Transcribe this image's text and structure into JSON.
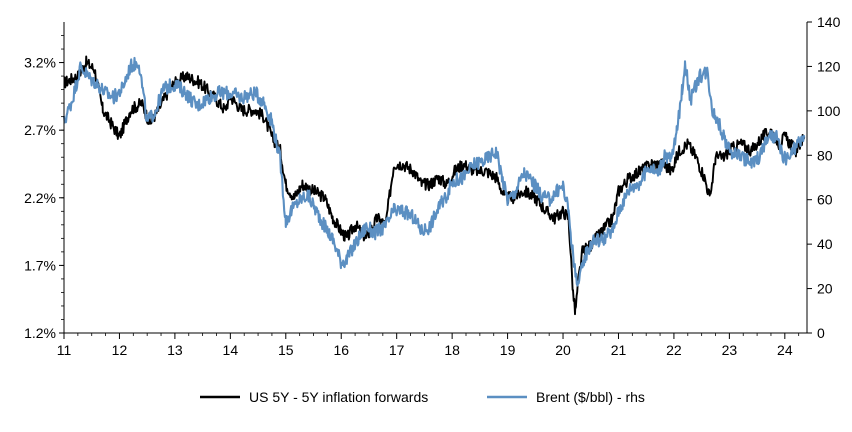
{
  "chart_data": {
    "type": "line",
    "title": "",
    "xlabel": "",
    "ylabel_left": "",
    "ylabel_right": "",
    "x_ticks": [
      "11",
      "12",
      "13",
      "14",
      "15",
      "16",
      "17",
      "18",
      "19",
      "20",
      "21",
      "22",
      "23",
      "24"
    ],
    "x_range": [
      2011.0,
      2024.4
    ],
    "y_left": {
      "ticks": [
        "1.2%",
        "1.7%",
        "2.2%",
        "2.7%",
        "3.2%"
      ],
      "range": [
        1.2,
        3.5
      ]
    },
    "y_right": {
      "ticks": [
        "0",
        "20",
        "40",
        "60",
        "80",
        "100",
        "120",
        "140"
      ],
      "range": [
        0,
        140
      ]
    },
    "series": [
      {
        "name": "US 5Y - 5Y inflation forwards",
        "axis": "left",
        "color": "#000000",
        "points": [
          [
            2011.0,
            3.05
          ],
          [
            2011.25,
            3.1
          ],
          [
            2011.4,
            3.2
          ],
          [
            2011.55,
            3.15
          ],
          [
            2011.7,
            2.85
          ],
          [
            2011.85,
            2.75
          ],
          [
            2012.0,
            2.65
          ],
          [
            2012.2,
            2.85
          ],
          [
            2012.4,
            2.9
          ],
          [
            2012.55,
            2.75
          ],
          [
            2012.7,
            2.85
          ],
          [
            2012.9,
            3.0
          ],
          [
            2013.0,
            3.05
          ],
          [
            2013.2,
            3.1
          ],
          [
            2013.45,
            3.05
          ],
          [
            2013.7,
            2.95
          ],
          [
            2013.9,
            2.85
          ],
          [
            2014.0,
            2.95
          ],
          [
            2014.2,
            2.85
          ],
          [
            2014.45,
            2.85
          ],
          [
            2014.6,
            2.8
          ],
          [
            2014.75,
            2.65
          ],
          [
            2014.9,
            2.55
          ],
          [
            2015.0,
            2.3
          ],
          [
            2015.15,
            2.2
          ],
          [
            2015.3,
            2.3
          ],
          [
            2015.5,
            2.25
          ],
          [
            2015.7,
            2.2
          ],
          [
            2015.85,
            2.05
          ],
          [
            2016.0,
            1.95
          ],
          [
            2016.1,
            1.9
          ],
          [
            2016.25,
            2.0
          ],
          [
            2016.45,
            1.9
          ],
          [
            2016.65,
            2.05
          ],
          [
            2016.8,
            2.0
          ],
          [
            2016.95,
            2.45
          ],
          [
            2017.1,
            2.45
          ],
          [
            2017.3,
            2.4
          ],
          [
            2017.45,
            2.3
          ],
          [
            2017.6,
            2.3
          ],
          [
            2017.75,
            2.35
          ],
          [
            2017.9,
            2.3
          ],
          [
            2018.05,
            2.4
          ],
          [
            2018.2,
            2.45
          ],
          [
            2018.4,
            2.4
          ],
          [
            2018.6,
            2.4
          ],
          [
            2018.8,
            2.35
          ],
          [
            2018.95,
            2.2
          ],
          [
            2019.1,
            2.2
          ],
          [
            2019.3,
            2.25
          ],
          [
            2019.5,
            2.2
          ],
          [
            2019.7,
            2.1
          ],
          [
            2019.85,
            2.05
          ],
          [
            2020.0,
            2.1
          ],
          [
            2020.1,
            2.05
          ],
          [
            2020.18,
            1.5
          ],
          [
            2020.22,
            1.35
          ],
          [
            2020.28,
            1.6
          ],
          [
            2020.35,
            1.8
          ],
          [
            2020.5,
            1.85
          ],
          [
            2020.7,
            1.95
          ],
          [
            2020.9,
            2.05
          ],
          [
            2021.0,
            2.25
          ],
          [
            2021.2,
            2.35
          ],
          [
            2021.4,
            2.4
          ],
          [
            2021.6,
            2.45
          ],
          [
            2021.8,
            2.45
          ],
          [
            2021.95,
            2.4
          ],
          [
            2022.1,
            2.55
          ],
          [
            2022.25,
            2.6
          ],
          [
            2022.4,
            2.5
          ],
          [
            2022.55,
            2.35
          ],
          [
            2022.65,
            2.2
          ],
          [
            2022.75,
            2.5
          ],
          [
            2022.9,
            2.5
          ],
          [
            2023.0,
            2.55
          ],
          [
            2023.2,
            2.6
          ],
          [
            2023.4,
            2.55
          ],
          [
            2023.6,
            2.65
          ],
          [
            2023.75,
            2.7
          ],
          [
            2023.9,
            2.6
          ],
          [
            2024.0,
            2.65
          ],
          [
            2024.2,
            2.55
          ],
          [
            2024.35,
            2.65
          ]
        ]
      },
      {
        "name": "Brent ($/bbl) - rhs",
        "axis": "right",
        "color": "#5B8FC2",
        "points": [
          [
            2011.0,
            95
          ],
          [
            2011.15,
            105
          ],
          [
            2011.3,
            120
          ],
          [
            2011.45,
            115
          ],
          [
            2011.6,
            112
          ],
          [
            2011.75,
            108
          ],
          [
            2011.9,
            106
          ],
          [
            2012.05,
            110
          ],
          [
            2012.2,
            120
          ],
          [
            2012.35,
            122
          ],
          [
            2012.5,
            95
          ],
          [
            2012.65,
            100
          ],
          [
            2012.8,
            110
          ],
          [
            2013.0,
            112
          ],
          [
            2013.2,
            108
          ],
          [
            2013.4,
            102
          ],
          [
            2013.6,
            106
          ],
          [
            2013.8,
            108
          ],
          [
            2014.0,
            108
          ],
          [
            2014.2,
            106
          ],
          [
            2014.45,
            108
          ],
          [
            2014.6,
            104
          ],
          [
            2014.75,
            95
          ],
          [
            2014.9,
            78
          ],
          [
            2015.0,
            50
          ],
          [
            2015.1,
            55
          ],
          [
            2015.25,
            60
          ],
          [
            2015.4,
            62
          ],
          [
            2015.55,
            55
          ],
          [
            2015.7,
            48
          ],
          [
            2015.85,
            42
          ],
          [
            2016.0,
            32
          ],
          [
            2016.1,
            33
          ],
          [
            2016.25,
            40
          ],
          [
            2016.45,
            48
          ],
          [
            2016.6,
            45
          ],
          [
            2016.8,
            48
          ],
          [
            2016.95,
            55
          ],
          [
            2017.1,
            55
          ],
          [
            2017.3,
            52
          ],
          [
            2017.45,
            46
          ],
          [
            2017.6,
            48
          ],
          [
            2017.75,
            56
          ],
          [
            2017.9,
            62
          ],
          [
            2018.0,
            68
          ],
          [
            2018.2,
            70
          ],
          [
            2018.4,
            76
          ],
          [
            2018.6,
            78
          ],
          [
            2018.8,
            82
          ],
          [
            2018.9,
            70
          ],
          [
            2019.0,
            60
          ],
          [
            2019.1,
            62
          ],
          [
            2019.3,
            72
          ],
          [
            2019.45,
            68
          ],
          [
            2019.6,
            62
          ],
          [
            2019.75,
            60
          ],
          [
            2019.9,
            64
          ],
          [
            2020.0,
            66
          ],
          [
            2020.1,
            55
          ],
          [
            2020.2,
            30
          ],
          [
            2020.28,
            22
          ],
          [
            2020.4,
            35
          ],
          [
            2020.55,
            42
          ],
          [
            2020.7,
            42
          ],
          [
            2020.9,
            46
          ],
          [
            2021.0,
            55
          ],
          [
            2021.2,
            65
          ],
          [
            2021.4,
            68
          ],
          [
            2021.55,
            75
          ],
          [
            2021.7,
            72
          ],
          [
            2021.85,
            80
          ],
          [
            2021.95,
            78
          ],
          [
            2022.05,
            90
          ],
          [
            2022.15,
            110
          ],
          [
            2022.2,
            122
          ],
          [
            2022.3,
            105
          ],
          [
            2022.45,
            115
          ],
          [
            2022.6,
            118
          ],
          [
            2022.7,
            100
          ],
          [
            2022.8,
            95
          ],
          [
            2022.95,
            85
          ],
          [
            2023.0,
            82
          ],
          [
            2023.2,
            80
          ],
          [
            2023.4,
            76
          ],
          [
            2023.55,
            80
          ],
          [
            2023.7,
            88
          ],
          [
            2023.85,
            88
          ],
          [
            2023.95,
            80
          ],
          [
            2024.05,
            78
          ],
          [
            2024.2,
            84
          ],
          [
            2024.35,
            88
          ]
        ]
      }
    ],
    "legend": [
      "US 5Y - 5Y inflation forwards",
      "Brent ($/bbl) - rhs"
    ],
    "legend_position": "bottom-center",
    "grid": false
  }
}
